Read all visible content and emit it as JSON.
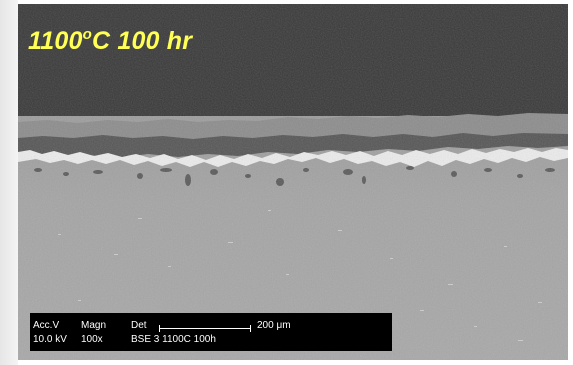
{
  "caption": {
    "temperature": "1100",
    "degree_symbol": "o",
    "suffix": "C 100 hr"
  },
  "databar": {
    "acc_v_label": "Acc.V",
    "acc_v_value": "10.0 kV",
    "magn_label": "Magn",
    "magn_value": "100x",
    "det_label": "Det",
    "det_value": "BSE 3 1100C 100h",
    "scale_value": "200 μm"
  },
  "colors": {
    "caption": "#ffff55",
    "mount_dark": "#383838",
    "substrate": "#a9a9a9"
  }
}
